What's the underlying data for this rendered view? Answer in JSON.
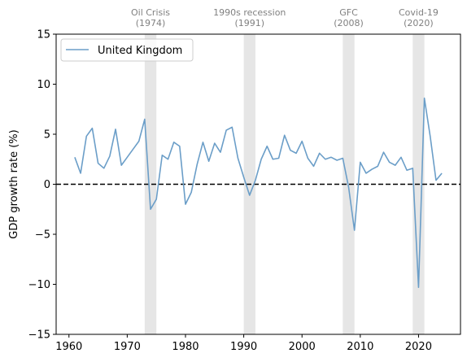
{
  "chart_data": {
    "type": "line",
    "title": "",
    "xlabel": "",
    "ylabel": "GDP growth rate (%)",
    "xlim": [
      1957.8,
      2027.2
    ],
    "ylim": [
      -15,
      15
    ],
    "xticks": [
      1960,
      1970,
      1980,
      1990,
      2000,
      2010,
      2020
    ],
    "yticks": [
      -15,
      -10,
      -5,
      0,
      5,
      10,
      15
    ],
    "grid": false,
    "legend_position": "top-left",
    "reference_line": {
      "y": 0,
      "style": "dashed",
      "color": "#000000"
    },
    "shaded_periods": [
      {
        "label": "Oil Crisis\n(1974)",
        "start": 1973,
        "end": 1975
      },
      {
        "label": "1990s recession\n(1991)",
        "start": 1990,
        "end": 1992
      },
      {
        "label": "GFC\n(2008)",
        "start": 2007,
        "end": 2009
      },
      {
        "label": "Covid-19\n(2020)",
        "start": 2019,
        "end": 2021
      }
    ],
    "series": [
      {
        "name": "United Kingdom",
        "color": "#6b9ec8",
        "x": [
          1961,
          1962,
          1963,
          1964,
          1965,
          1966,
          1967,
          1968,
          1969,
          1970,
          1971,
          1972,
          1973,
          1974,
          1975,
          1976,
          1977,
          1978,
          1979,
          1980,
          1981,
          1982,
          1983,
          1984,
          1985,
          1986,
          1987,
          1988,
          1989,
          1990,
          1991,
          1992,
          1993,
          1994,
          1995,
          1996,
          1997,
          1998,
          1999,
          2000,
          2001,
          2002,
          2003,
          2004,
          2005,
          2006,
          2007,
          2008,
          2009,
          2010,
          2011,
          2012,
          2013,
          2014,
          2015,
          2016,
          2017,
          2018,
          2019,
          2020,
          2021,
          2022,
          2023,
          2024
        ],
        "values": [
          2.7,
          1.1,
          4.8,
          5.6,
          2.1,
          1.6,
          2.8,
          5.5,
          1.9,
          2.7,
          3.5,
          4.3,
          6.5,
          -2.5,
          -1.5,
          2.9,
          2.5,
          4.2,
          3.8,
          -2.0,
          -0.8,
          2.0,
          4.2,
          2.3,
          4.1,
          3.2,
          5.4,
          5.7,
          2.6,
          0.7,
          -1.1,
          0.4,
          2.5,
          3.8,
          2.5,
          2.6,
          4.9,
          3.4,
          3.1,
          4.3,
          2.6,
          1.8,
          3.1,
          2.5,
          2.7,
          2.4,
          2.6,
          -0.3,
          -4.6,
          2.2,
          1.1,
          1.5,
          1.8,
          3.2,
          2.2,
          1.9,
          2.7,
          1.4,
          1.6,
          -10.3,
          8.6,
          4.8,
          0.4,
          1.1
        ]
      }
    ]
  }
}
